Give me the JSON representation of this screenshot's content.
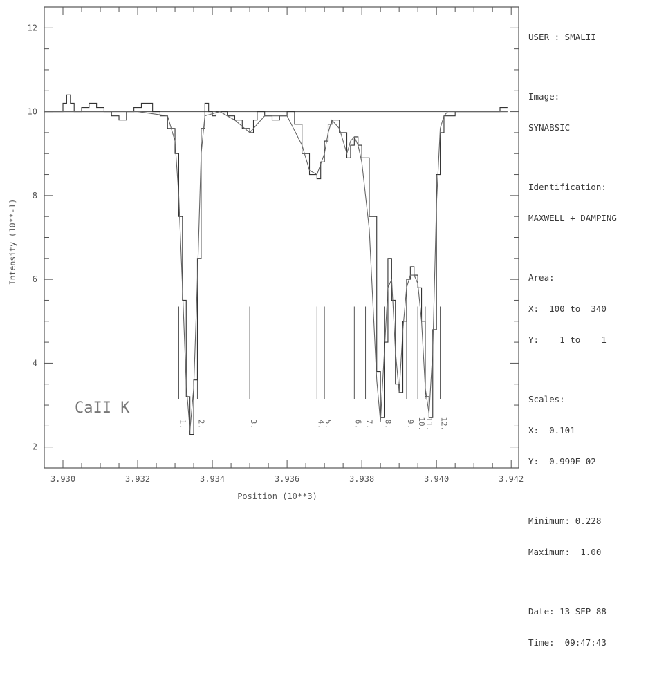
{
  "info": {
    "user_line": "USER : SMALII",
    "image_label": "Image:",
    "image_value": "SYNABSIC",
    "ident_label": "Identification:",
    "ident_value": "MAXWELL + DAMPING",
    "area_label": "Area:",
    "area_x": "X:  100 to  340",
    "area_y": "Y:    1 to    1",
    "scales_label": "Scales:",
    "scales_x": "X:  0.101",
    "scales_y": "Y:  0.999E-02",
    "minimum": "Minimum: 0.228",
    "maximum": "Maximum:  1.00",
    "date": "Date: 13-SEP-88",
    "time": "Time:  09:47:43"
  },
  "chart_data": {
    "type": "line",
    "xlabel": "Position (10**3)",
    "ylabel": "Intensity (10**-1)",
    "annotation": "CaII K",
    "xlim": [
      3.9295,
      3.9422
    ],
    "ylim": [
      1.5,
      12.5
    ],
    "x_ticks": [
      "3.930",
      "3.932",
      "3.934",
      "3.936",
      "3.938",
      "3.940",
      "3.942"
    ],
    "x_tick_values": [
      3.93,
      3.932,
      3.934,
      3.936,
      3.938,
      3.94,
      3.942
    ],
    "y_ticks": [
      "2",
      "4",
      "6",
      "8",
      "10",
      "12"
    ],
    "y_tick_values": [
      2,
      4,
      6,
      8,
      10,
      12
    ],
    "series": [
      {
        "style": "stepped",
        "x": [
          3.9295,
          3.9297,
          3.93,
          3.9301,
          3.9302,
          3.9303,
          3.9305,
          3.9307,
          3.9309,
          3.9311,
          3.9313,
          3.9315,
          3.9317,
          3.9319,
          3.9321,
          3.9323,
          3.9324,
          3.9326,
          3.9328,
          3.933,
          3.9331,
          3.9332,
          3.9333,
          3.9334,
          3.9335,
          3.9336,
          3.9337,
          3.9338,
          3.9339,
          3.934,
          3.9341,
          3.9342,
          3.9344,
          3.9346,
          3.9348,
          3.935,
          3.9351,
          3.9352,
          3.9354,
          3.9356,
          3.9358,
          3.936,
          3.9362,
          3.9364,
          3.9366,
          3.9368,
          3.9369,
          3.937,
          3.9371,
          3.9372,
          3.9374,
          3.9376,
          3.9377,
          3.9378,
          3.9379,
          3.938,
          3.9382,
          3.9384,
          3.9385,
          3.9386,
          3.9387,
          3.9388,
          3.9389,
          3.939,
          3.9391,
          3.9392,
          3.9393,
          3.9394,
          3.9395,
          3.9396,
          3.9397,
          3.9398,
          3.9399,
          3.94,
          3.9401,
          3.9402,
          3.9403,
          3.9405,
          3.9407,
          3.9409,
          3.9411,
          3.9413,
          3.9415,
          3.9417,
          3.9419
        ],
        "y": [
          10.0,
          10.0,
          10.2,
          10.4,
          10.2,
          10.0,
          10.1,
          10.2,
          10.1,
          10.0,
          9.9,
          9.8,
          10.0,
          10.1,
          10.2,
          10.2,
          10.0,
          9.9,
          9.6,
          9.0,
          7.5,
          5.5,
          3.2,
          2.3,
          3.6,
          6.5,
          9.6,
          10.2,
          10.0,
          9.9,
          10.0,
          10.0,
          9.9,
          9.8,
          9.6,
          9.5,
          9.8,
          10.0,
          9.9,
          9.8,
          9.9,
          10.0,
          9.7,
          9.0,
          8.5,
          8.4,
          8.8,
          9.3,
          9.7,
          9.8,
          9.5,
          8.9,
          9.2,
          9.4,
          9.2,
          8.9,
          7.5,
          3.8,
          2.7,
          4.5,
          6.5,
          5.5,
          3.5,
          3.3,
          5.0,
          6.0,
          6.3,
          6.1,
          5.8,
          5.0,
          3.2,
          2.7,
          4.8,
          8.5,
          9.5,
          9.9,
          9.9,
          10.0,
          10.0,
          10.0,
          10.0,
          10.0,
          10.0,
          10.1,
          10.1
        ]
      },
      {
        "style": "smooth",
        "x": [
          3.9295,
          3.932,
          3.9328,
          3.933,
          3.9331,
          3.9332,
          3.9333,
          3.9334,
          3.9335,
          3.9336,
          3.9337,
          3.9338,
          3.9342,
          3.9346,
          3.935,
          3.9354,
          3.936,
          3.9364,
          3.9366,
          3.9368,
          3.937,
          3.9371,
          3.9372,
          3.9374,
          3.9376,
          3.9377,
          3.9378,
          3.9379,
          3.938,
          3.9382,
          3.9384,
          3.9385,
          3.9386,
          3.9387,
          3.9388,
          3.9389,
          3.939,
          3.9391,
          3.9392,
          3.9393,
          3.9394,
          3.9395,
          3.9396,
          3.9397,
          3.9398,
          3.9399,
          3.94,
          3.9401,
          3.9402,
          3.9403,
          3.9405,
          3.9419
        ],
        "y": [
          10.0,
          10.0,
          9.9,
          9.3,
          8.0,
          5.8,
          3.5,
          2.4,
          3.4,
          6.0,
          9.0,
          9.9,
          10.0,
          9.8,
          9.5,
          9.9,
          9.9,
          9.2,
          8.6,
          8.5,
          9.0,
          9.5,
          9.8,
          9.6,
          9.0,
          9.3,
          9.4,
          9.2,
          8.8,
          7.2,
          3.6,
          2.6,
          4.2,
          5.8,
          6.0,
          4.3,
          3.3,
          4.8,
          5.8,
          6.1,
          6.1,
          5.9,
          5.0,
          3.4,
          2.8,
          4.3,
          7.8,
          9.6,
          9.9,
          10.0,
          10.0,
          10.0
        ]
      }
    ],
    "line_markers": [
      {
        "x": 3.9331,
        "label": "1."
      },
      {
        "x": 3.9336,
        "label": "2."
      },
      {
        "x": 3.935,
        "label": "3."
      },
      {
        "x": 3.9368,
        "label": "4."
      },
      {
        "x": 3.937,
        "label": "5."
      },
      {
        "x": 3.9378,
        "label": "6."
      },
      {
        "x": 3.9381,
        "label": "7."
      },
      {
        "x": 3.9386,
        "label": "8."
      },
      {
        "x": 3.9392,
        "label": "9."
      },
      {
        "x": 3.9395,
        "label": "10."
      },
      {
        "x": 3.9397,
        "label": "11."
      },
      {
        "x": 3.9401,
        "label": "12."
      }
    ],
    "marker_ytop": 5.35,
    "marker_ybottom": 3.15,
    "grid": false,
    "legend": "none"
  }
}
